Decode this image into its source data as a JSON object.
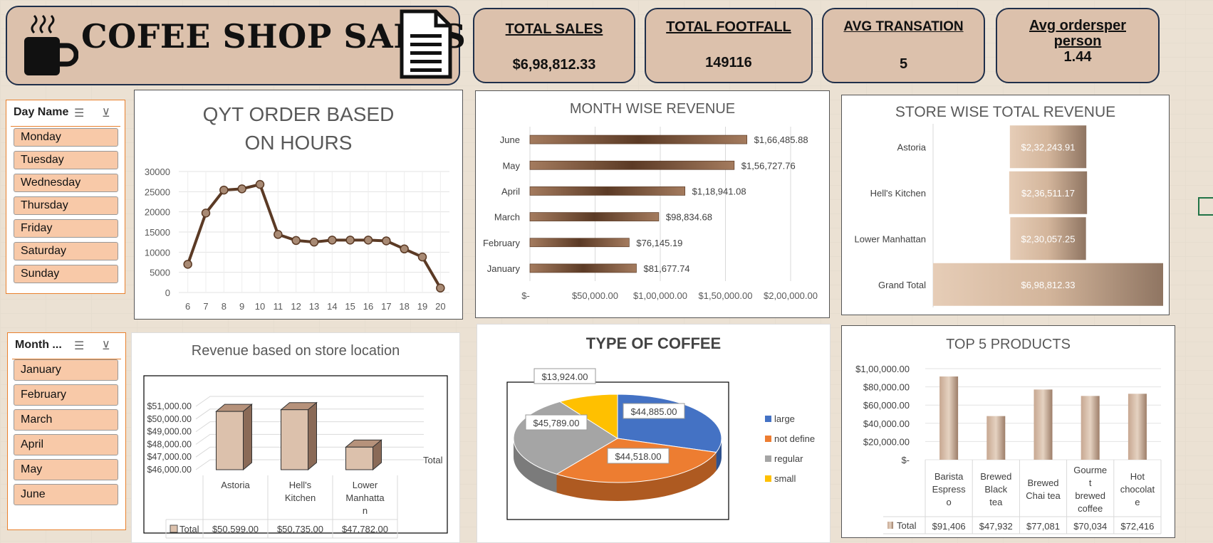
{
  "header": {
    "title": "COFEE SHOP SALES",
    "kpis": [
      {
        "label": "TOTAL SALES",
        "value": "$6,98,812.33"
      },
      {
        "label": "TOTAL FOOTFALL",
        "value": "149116"
      },
      {
        "label": "AVG TRANSATION",
        "value": "5"
      },
      {
        "label": "Avg ordersper person",
        "value": "1.44"
      }
    ]
  },
  "slicers": {
    "day": {
      "title": "Day Name",
      "items": [
        "Monday",
        "Tuesday",
        "Wednesday",
        "Thursday",
        "Friday",
        "Saturday",
        "Sunday"
      ]
    },
    "month": {
      "title": "Month ...",
      "items": [
        "January",
        "February",
        "March",
        "April",
        "May",
        "June"
      ]
    }
  },
  "colors": {
    "brown": "#5b3a25",
    "tan": "#c9a88f",
    "bg": "#ebe1d3",
    "large": "#4472c4",
    "not_define": "#ed7d31",
    "regular": "#a5a5a5",
    "small": "#ffc000"
  },
  "chart_data": [
    {
      "id": "hourly",
      "type": "line",
      "title": "QYT ORDER BASED ON HOURS",
      "x": [
        6,
        7,
        8,
        9,
        10,
        11,
        12,
        13,
        14,
        15,
        16,
        17,
        18,
        19,
        20
      ],
      "values": [
        7000,
        19700,
        25400,
        25700,
        26800,
        14400,
        12900,
        12500,
        13000,
        13000,
        13000,
        12800,
        10800,
        8800,
        1100
      ],
      "yticks": [
        "30000",
        "25000",
        "20000",
        "15000",
        "10000",
        "5000",
        "0"
      ],
      "ylim": [
        0,
        30000
      ]
    },
    {
      "id": "month",
      "type": "bar",
      "title": "MONTH WISE REVENUE",
      "categories": [
        "June",
        "May",
        "April",
        "March",
        "February",
        "January"
      ],
      "values": [
        166485.88,
        156727.76,
        118941.08,
        98834.68,
        76145.19,
        81677.74
      ],
      "labels": [
        "$1,66,485.88",
        "$1,56,727.76",
        "$1,18,941.08",
        "$98,834.68",
        "$76,145.19",
        "$81,677.74"
      ],
      "xticks": [
        "$-",
        "$50,000.00",
        "$1,00,000.00",
        "$1,50,000.00",
        "$2,00,000.00"
      ],
      "xlim": [
        0,
        200000
      ]
    },
    {
      "id": "store",
      "type": "bar",
      "title": "STORE WISE TOTAL REVENUE",
      "categories": [
        "Astoria",
        "Hell's Kitchen",
        "Lower Manhattan",
        "Grand Total"
      ],
      "values": [
        232243.91,
        236511.17,
        230057.25,
        698812.33
      ],
      "labels": [
        "$2,32,243.91",
        "$2,36,511.17",
        "$2,30,057.25",
        "$6,98,812.33"
      ]
    },
    {
      "id": "location",
      "type": "bar",
      "title": "Revenue based on store location",
      "categories": [
        "Astoria",
        "Hell's Kitchen",
        "Lower Manhatta n"
      ],
      "values": [
        50599,
        50735,
        47782
      ],
      "labels": [
        "$50,599.00",
        "$50,735.00",
        "$47,782.00"
      ],
      "yticks": [
        "$51,000.00",
        "$50,000.00",
        "$49,000.00",
        "$48,000.00",
        "$47,000.00",
        "$46,000.00"
      ],
      "ylim": [
        46000,
        51000
      ],
      "series_name": "Total"
    },
    {
      "id": "coffee",
      "type": "pie",
      "title": "TYPE OF COFFEE",
      "categories": [
        "large",
        "not define",
        "regular",
        "small"
      ],
      "values": [
        44885,
        44518,
        45789,
        13924
      ],
      "labels": [
        "$44,885.00",
        "$44,518.00",
        "$45,789.00",
        "$13,924.00"
      ]
    },
    {
      "id": "top5",
      "type": "bar",
      "title": "TOP 5 PRODUCTS",
      "categories": [
        "Barista Espress o",
        "Brewed Black tea",
        "Brewed Chai tea",
        "Gourme t brewed coffee",
        "Hot chocolat e"
      ],
      "values": [
        91406,
        47932,
        77081,
        70034,
        72416
      ],
      "labels": [
        "$91,406",
        "$47,932",
        "$77,081",
        "$70,034",
        "$72,416"
      ],
      "yticks": [
        "$1,00,000.00",
        "$80,000.00",
        "$60,000.00",
        "$40,000.00",
        "$20,000.00",
        "$-"
      ],
      "ylim": [
        0,
        100000
      ],
      "series_name": "Total"
    }
  ]
}
